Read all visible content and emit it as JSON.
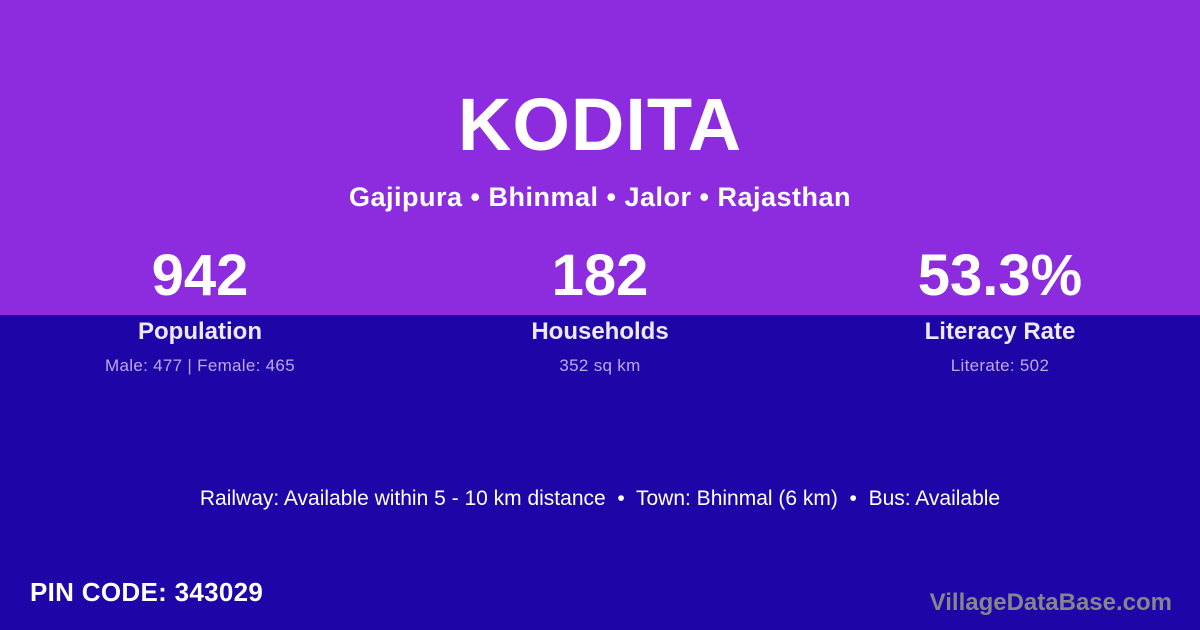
{
  "colors": {
    "top_bg": "#8D2BDF",
    "bottom_bg": "#1E05A7",
    "text_primary": "#FFFFFF",
    "label_text": "#EDE8FA",
    "detail_text": "#BCA9EC",
    "watermark_text": "#85858D"
  },
  "header": {
    "title": "KODITA",
    "subtitle": "Gajipura • Bhinmal • Jalor • Rajasthan"
  },
  "stats": [
    {
      "value": "942",
      "label": "Population",
      "detail": "Male: 477 | Female: 465"
    },
    {
      "value": "182",
      "label": "Households",
      "detail": "352 sq km"
    },
    {
      "value": "53.3%",
      "label": "Literacy Rate",
      "detail": "Literate: 502"
    }
  ],
  "footer": {
    "info_line": "Railway: Available within 5 - 10 km distance  •  Town: Bhinmal (6 km)  •  Bus: Available",
    "pin_code": "PIN CODE: 343029",
    "watermark": "VillageDataBase.com"
  }
}
